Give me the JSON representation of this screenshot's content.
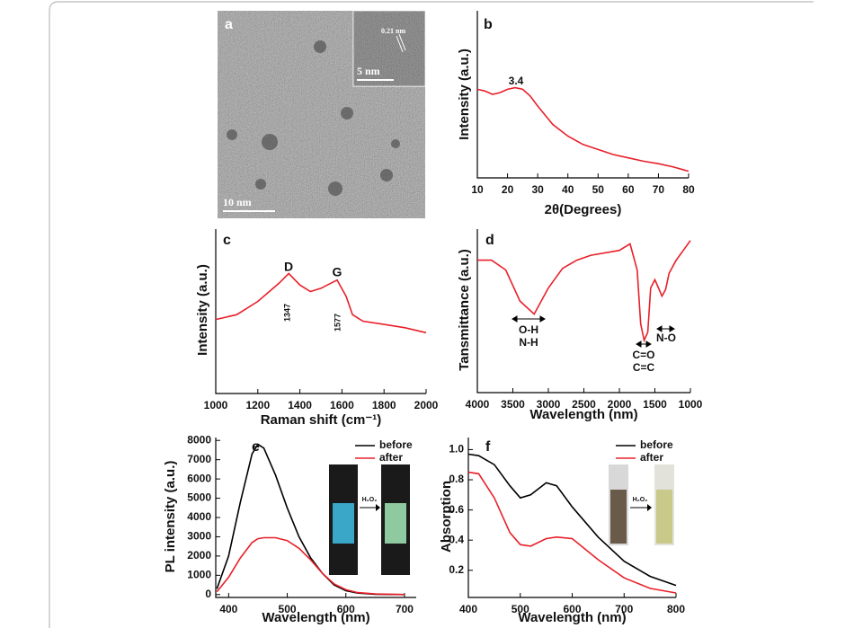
{
  "chart_data": [
    {
      "type": "image",
      "label": "a",
      "annotations": [
        "10 nm",
        "5 nm",
        "0.21 nm"
      ]
    },
    {
      "type": "line",
      "label": "b",
      "x_label": "2θ(Degrees)",
      "y_label": "Intensity (a.u.)",
      "x": [
        10,
        12.5,
        15,
        17.5,
        20,
        22.5,
        25,
        27.5,
        30,
        35,
        40,
        45,
        50,
        55,
        60,
        65,
        70,
        75,
        80
      ],
      "values": [
        0.53,
        0.52,
        0.5,
        0.51,
        0.53,
        0.54,
        0.53,
        0.49,
        0.43,
        0.32,
        0.25,
        0.2,
        0.17,
        0.14,
        0.12,
        0.1,
        0.085,
        0.065,
        0.04
      ],
      "color": "#e8202a",
      "xlim": [
        10,
        80
      ],
      "ylim": [
        0,
        1
      ],
      "xticks": [
        10,
        20,
        30,
        40,
        50,
        60,
        70,
        80
      ],
      "annotations": [
        "3.4"
      ]
    },
    {
      "type": "line",
      "label": "c",
      "x_label": "Raman shift (cm⁻¹)",
      "y_label": "Intensity (a.u.)",
      "x": [
        1000,
        1100,
        1200,
        1300,
        1347,
        1400,
        1450,
        1500,
        1577,
        1620,
        1650,
        1700,
        1800,
        1900,
        2000
      ],
      "values": [
        0.45,
        0.48,
        0.56,
        0.67,
        0.73,
        0.66,
        0.62,
        0.64,
        0.69,
        0.59,
        0.48,
        0.44,
        0.42,
        0.4,
        0.37
      ],
      "color": "#e8202a",
      "xlim": [
        1000,
        2000
      ],
      "ylim": [
        0,
        1
      ],
      "xticks": [
        1000,
        1200,
        1400,
        1600,
        1800,
        2000
      ],
      "annotations": [
        "D",
        "G",
        "1347",
        "1577"
      ]
    },
    {
      "type": "line",
      "label": "d",
      "x_label": "Wavelength (nm)",
      "y_label": "Tansmittance (a.u.)",
      "x": [
        4000,
        3800,
        3600,
        3400,
        3200,
        3000,
        2800,
        2600,
        2400,
        2000,
        1850,
        1750,
        1700,
        1650,
        1600,
        1560,
        1500,
        1450,
        1400,
        1350,
        1300,
        1200,
        1100,
        1000
      ],
      "values": [
        0.81,
        0.81,
        0.75,
        0.56,
        0.48,
        0.64,
        0.76,
        0.81,
        0.84,
        0.87,
        0.91,
        0.75,
        0.42,
        0.32,
        0.37,
        0.64,
        0.69,
        0.64,
        0.59,
        0.63,
        0.73,
        0.81,
        0.87,
        0.93
      ],
      "color": "#e8202a",
      "xlim": [
        4000,
        1000
      ],
      "ylim": [
        0,
        1
      ],
      "xticks": [
        4000,
        3500,
        3000,
        2500,
        2000,
        1500,
        1000
      ],
      "annotations": [
        "O-H",
        "N-H",
        "C=O",
        "C=C",
        "N-O"
      ]
    },
    {
      "type": "line",
      "label": "e",
      "x_label": "Wavelength (nm)",
      "y_label": "PL intensity (a.u.)",
      "x": [
        380,
        400,
        420,
        440,
        450,
        460,
        480,
        500,
        520,
        540,
        560,
        580,
        600,
        620,
        650,
        700
      ],
      "series": [
        {
          "name": "before",
          "color": "#000000",
          "values": [
            300,
            2000,
            4800,
            7300,
            7800,
            7600,
            6200,
            4500,
            3000,
            1900,
            1100,
            500,
            200,
            80,
            20,
            0
          ]
        },
        {
          "name": "after",
          "color": "#e8202a",
          "values": [
            150,
            900,
            1900,
            2700,
            2900,
            2950,
            2950,
            2800,
            2400,
            1800,
            1100,
            550,
            250,
            100,
            30,
            0
          ]
        }
      ],
      "xlim": [
        378,
        720
      ],
      "ylim": [
        -150,
        8150
      ],
      "xticks": [
        400,
        500,
        600,
        700
      ],
      "yticks": [
        0,
        1000,
        2000,
        3000,
        4000,
        5000,
        6000,
        7000,
        8000
      ],
      "annotations": [
        "H₂O₂"
      ]
    },
    {
      "type": "line",
      "label": "f",
      "x_label": "Wavelength (nm)",
      "y_label": "Absorption",
      "x": [
        400,
        420,
        450,
        480,
        500,
        520,
        550,
        570,
        600,
        650,
        700,
        750,
        800
      ],
      "series": [
        {
          "name": "before",
          "color": "#000000",
          "values": [
            0.97,
            0.96,
            0.9,
            0.76,
            0.68,
            0.7,
            0.78,
            0.76,
            0.62,
            0.42,
            0.26,
            0.16,
            0.1
          ]
        },
        {
          "name": "after",
          "color": "#e8202a",
          "values": [
            0.85,
            0.84,
            0.68,
            0.45,
            0.37,
            0.36,
            0.41,
            0.42,
            0.41,
            0.27,
            0.15,
            0.08,
            0.05
          ]
        }
      ],
      "xlim": [
        400,
        800
      ],
      "ylim": [
        0.02,
        1.08
      ],
      "xticks": [
        400,
        500,
        600,
        700,
        800
      ],
      "yticks": [
        0.2,
        0.4,
        0.6,
        0.8,
        {
          "value": 1,
          "label": "1.0"
        }
      ],
      "annotations": [
        "H₂O₂"
      ]
    }
  ]
}
